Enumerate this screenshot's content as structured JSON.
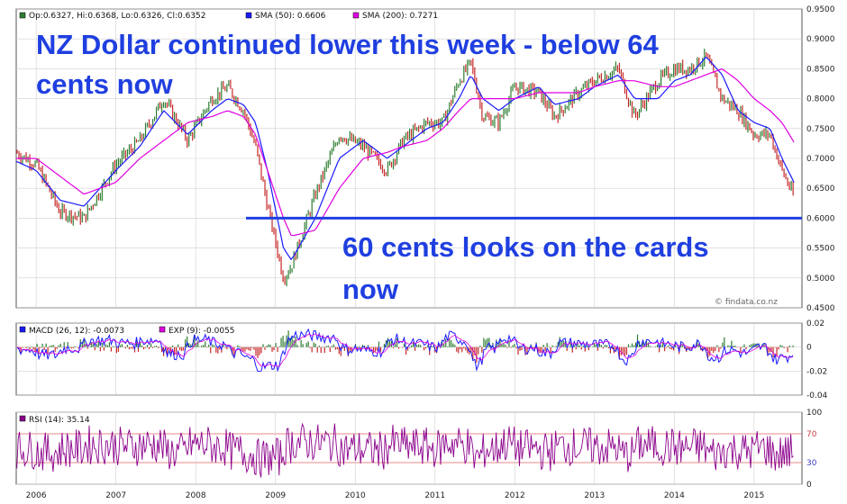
{
  "chart_data": [
    {
      "type": "line",
      "panel": "price",
      "legend": [
        {
          "label": "Op:0.6327, Hi:0.6368, Lo:0.6326, Cl:0.6352",
          "color": "#2e7d32"
        },
        {
          "label": "SMA (50): 0.6606",
          "color": "#1a1aff"
        },
        {
          "label": "SMA (200): 0.7271",
          "color": "#e000e0"
        }
      ],
      "ylim": [
        0.45,
        0.95
      ],
      "yticks": [
        "0.9500",
        "0.9000",
        "0.8500",
        "0.8000",
        "0.7500",
        "0.7000",
        "0.6500",
        "0.6000",
        "0.5500",
        "0.5000",
        "0.4500"
      ],
      "x": [
        2005.75,
        2006.0,
        2006.3,
        2006.6,
        2007.0,
        2007.3,
        2007.6,
        2007.9,
        2008.2,
        2008.4,
        2008.6,
        2008.75,
        2008.9,
        2009.1,
        2009.2,
        2009.5,
        2009.8,
        2010.1,
        2010.4,
        2010.6,
        2010.9,
        2011.1,
        2011.3,
        2011.45,
        2011.6,
        2011.8,
        2012.0,
        2012.3,
        2012.5,
        2012.8,
        2013.0,
        2013.3,
        2013.5,
        2013.8,
        2014.0,
        2014.2,
        2014.4,
        2014.6,
        2014.8,
        2015.0,
        2015.2,
        2015.35,
        2015.5
      ],
      "series": [
        {
          "name": "SMA (50)",
          "color": "#1a1aff",
          "values": [
            0.695,
            0.68,
            0.63,
            0.62,
            0.68,
            0.72,
            0.78,
            0.74,
            0.78,
            0.8,
            0.79,
            0.76,
            0.68,
            0.55,
            0.53,
            0.6,
            0.7,
            0.73,
            0.7,
            0.72,
            0.75,
            0.76,
            0.8,
            0.84,
            0.8,
            0.78,
            0.8,
            0.82,
            0.79,
            0.8,
            0.82,
            0.84,
            0.8,
            0.8,
            0.83,
            0.84,
            0.87,
            0.84,
            0.78,
            0.76,
            0.75,
            0.7,
            0.66
          ]
        },
        {
          "name": "SMA (200)",
          "color": "#e000e0",
          "values": [
            0.7,
            0.7,
            0.67,
            0.64,
            0.66,
            0.7,
            0.73,
            0.76,
            0.77,
            0.78,
            0.77,
            0.74,
            0.68,
            0.6,
            0.57,
            0.58,
            0.65,
            0.7,
            0.71,
            0.72,
            0.73,
            0.75,
            0.78,
            0.8,
            0.8,
            0.8,
            0.8,
            0.81,
            0.81,
            0.81,
            0.82,
            0.83,
            0.83,
            0.82,
            0.82,
            0.83,
            0.84,
            0.85,
            0.83,
            0.8,
            0.78,
            0.76,
            0.7271
          ]
        }
      ],
      "price": [
        0.71,
        0.69,
        0.61,
        0.6,
        0.69,
        0.73,
        0.8,
        0.73,
        0.8,
        0.82,
        0.78,
        0.72,
        0.62,
        0.5,
        0.52,
        0.64,
        0.74,
        0.72,
        0.68,
        0.73,
        0.76,
        0.76,
        0.83,
        0.86,
        0.77,
        0.76,
        0.82,
        0.81,
        0.77,
        0.81,
        0.83,
        0.85,
        0.77,
        0.83,
        0.85,
        0.85,
        0.87,
        0.8,
        0.78,
        0.74,
        0.74,
        0.68,
        0.635
      ],
      "hline": 0.6,
      "annotations": [
        {
          "text": "NZ Dollar continued lower this week - below 64",
          "size": 36
        },
        {
          "text": "cents now",
          "size": 36
        },
        {
          "text": "60 cents looks on the cards",
          "size": 36
        },
        {
          "text": "now",
          "size": 36
        }
      ],
      "watermark": "© findata.co.nz",
      "xticks": [
        "2006",
        "2007",
        "2008",
        "2009",
        "2010",
        "2011",
        "2012",
        "2013",
        "2014",
        "2015"
      ]
    },
    {
      "type": "line",
      "panel": "macd",
      "legend": [
        {
          "label": "MACD (26, 12): -0.0073",
          "color": "#1a1aff"
        },
        {
          "label": "EXP (9): -0.0055",
          "color": "#e000e0"
        }
      ],
      "ylim": [
        -0.04,
        0.02
      ],
      "yticks": [
        "0.02",
        "0",
        "-0.02",
        "-0.04"
      ]
    },
    {
      "type": "line",
      "panel": "rsi",
      "legend": [
        {
          "label": "RSI (14): 35.14",
          "color": "#8b008b"
        }
      ],
      "ylim": [
        0,
        100
      ],
      "yticks": [
        "100",
        "70",
        "30",
        "0"
      ],
      "levels": [
        70,
        30
      ]
    }
  ],
  "colors": {
    "grid": "#cfcfcf",
    "frame": "#555555",
    "up": "#2e7d32",
    "down": "#c62828",
    "hline": "#1f3fe0",
    "annotation": "#1f3fe0",
    "rsi": "#8b008b",
    "rsi_level": "#e06060"
  }
}
